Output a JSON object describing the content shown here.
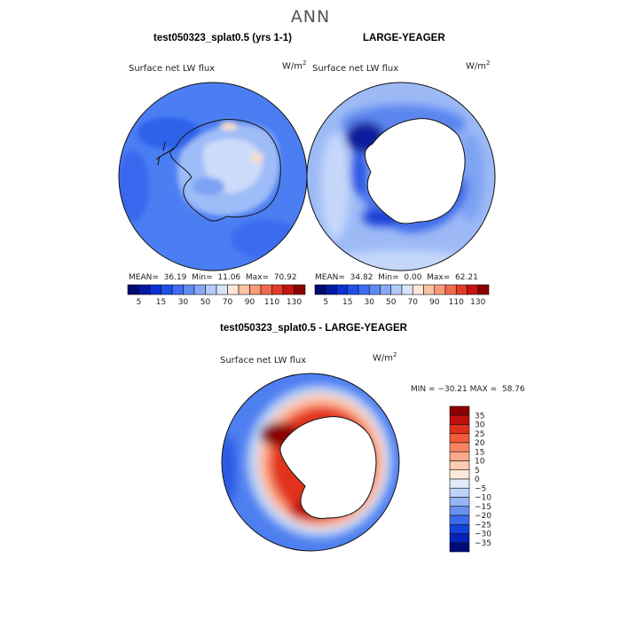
{
  "page": {
    "season": "ANN"
  },
  "chart_data": [
    {
      "type": "heatmap",
      "projection": "south-polar-stereographic",
      "title": "test050323_splat0.5 (yrs 1-1)",
      "field": "Surface net LW flux",
      "units": {
        "base": "W/m",
        "exp": "2"
      },
      "stats": {
        "mean_label": "MEAN=",
        "mean": "36.19",
        "min_label": "Min=",
        "min": "11.06",
        "max_label": "Max=",
        "max": "70.92"
      },
      "levels": [
        "5",
        "15",
        "30",
        "50",
        "70",
        "90",
        "110",
        "130"
      ],
      "colors": [
        "#000a70",
        "#0019a8",
        "#0a32d8",
        "#1f50ea",
        "#3d6cf2",
        "#5f8af4",
        "#88aaf6",
        "#b3cbf8",
        "#d8e4fb",
        "#fde6d6",
        "#fcc2a3",
        "#f99a77",
        "#f26a4c",
        "#e23c26",
        "#c71411",
        "#8c0303"
      ]
    },
    {
      "type": "heatmap",
      "projection": "south-polar-stereographic",
      "title": "LARGE-YEAGER",
      "field": "Surface net LW flux",
      "units": {
        "base": "W/m",
        "exp": "2"
      },
      "stats": {
        "mean_label": "MEAN=",
        "mean": "34.82",
        "min_label": "Min=",
        "min": "0.00",
        "max_label": "Max=",
        "max": "62.21"
      },
      "levels": [
        "5",
        "15",
        "30",
        "50",
        "70",
        "90",
        "110",
        "130"
      ],
      "colors": [
        "#000a70",
        "#0019a8",
        "#0a32d8",
        "#1f50ea",
        "#3d6cf2",
        "#5f8af4",
        "#88aaf6",
        "#b3cbf8",
        "#d8e4fb",
        "#fde6d6",
        "#fcc2a3",
        "#f99a77",
        "#f26a4c",
        "#e23c26",
        "#c71411",
        "#8c0303"
      ]
    },
    {
      "type": "heatmap",
      "projection": "south-polar-stereographic",
      "title": "test050323_splat0.5 - LARGE-YEAGER",
      "field": "Surface net LW flux",
      "units": {
        "base": "W/m",
        "exp": "2"
      },
      "stats": {
        "min_label": "MIN =",
        "min": "−30.21",
        "max_label": "MAX =",
        "max": "58.76"
      },
      "levels": [
        "35",
        "30",
        "25",
        "20",
        "15",
        "10",
        "5",
        "0",
        "−5",
        "−10",
        "−15",
        "−20",
        "−25",
        "−30",
        "−35"
      ],
      "colors": [
        "#8a0000",
        "#c10f0f",
        "#e0301c",
        "#f25a3a",
        "#f9845f",
        "#fba98a",
        "#fdcab2",
        "#fdeadc",
        "#e1ecfb",
        "#bed3f8",
        "#94b5f5",
        "#6a92f1",
        "#3c6aec",
        "#1440de",
        "#0522b8",
        "#000a78"
      ]
    }
  ]
}
